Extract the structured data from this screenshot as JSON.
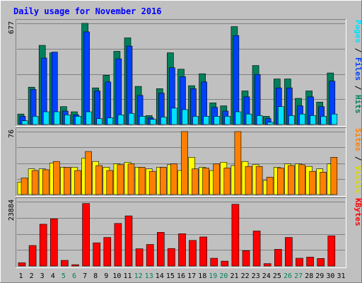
{
  "chart_data": {
    "type": "bar",
    "title": "Daily usage for November 2016",
    "categories": [
      "1",
      "2",
      "3",
      "4",
      "5",
      "6",
      "7",
      "8",
      "9",
      "10",
      "11",
      "12",
      "13",
      "14",
      "15",
      "16",
      "17",
      "18",
      "19",
      "20",
      "21",
      "22",
      "23",
      "24",
      "25",
      "26",
      "27",
      "28",
      "29",
      "30",
      "31"
    ],
    "weekend_days": [
      "5",
      "6",
      "12",
      "13",
      "19",
      "20",
      "26",
      "27"
    ],
    "grid": true,
    "panels": [
      {
        "id": "hits-files-pages",
        "ymax_label": "677",
        "ylim": [
          0,
          677
        ],
        "legend_label": "Pages / Files / Hits",
        "series": [
          {
            "name": "Hits",
            "values": [
              70,
              250,
              530,
              480,
              120,
              85,
              677,
              245,
              330,
              490,
              580,
              255,
              60,
              240,
              480,
              370,
              260,
              340,
              145,
              125,
              655,
              225,
              395,
              55,
              305,
              305,
              175,
              225,
              150,
              345,
              0
            ]
          },
          {
            "name": "Files",
            "values": [
              55,
              235,
              445,
              485,
              90,
              65,
              620,
              225,
              285,
              440,
              525,
              195,
              45,
              210,
              380,
              320,
              240,
              285,
              115,
              90,
              595,
              185,
              335,
              40,
              245,
              245,
              125,
              185,
              120,
              290,
              0
            ]
          },
          {
            "name": "Pages",
            "values": [
              25,
              55,
              85,
              85,
              65,
              55,
              85,
              40,
              45,
              65,
              75,
              55,
              35,
              50,
              110,
              100,
              55,
              55,
              55,
              55,
              85,
              70,
              60,
              15,
              120,
              60,
              70,
              60,
              55,
              70,
              0
            ]
          }
        ],
        "colors": {
          "Hits": "#00805c",
          "Files": "#0040ff",
          "Pages": "#00e0ff"
        }
      },
      {
        "id": "visits-sites",
        "ymax_label": "76",
        "ylim": [
          0,
          76
        ],
        "legend_label": "Sites / Visits",
        "series": [
          {
            "name": "Visits",
            "values": [
              15,
              31,
              31,
              38,
              33,
              33,
              44,
              40,
              33,
              37,
              39,
              33,
              31,
              33,
              36,
              29,
              45,
              33,
              29,
              39,
              35,
              40,
              36,
              17,
              33,
              37,
              37,
              34,
              31,
              37,
              0
            ]
          },
          {
            "name": "Sites",
            "values": [
              20,
              29,
              30,
              40,
              33,
              29,
              52,
              35,
              29,
              36,
              37,
              33,
              28,
              33,
              37,
              76,
              31,
              32,
              37,
              32,
              76,
              34,
              34,
              21,
              32,
              35,
              36,
              28,
              27,
              45,
              0
            ]
          }
        ],
        "colors": {
          "Visits": "#ffff00",
          "Sites": "#ff8000"
        }
      },
      {
        "id": "kbytes",
        "ymax_label": "23884",
        "ylim": [
          0,
          23884
        ],
        "legend_label": "KBytes",
        "series": [
          {
            "name": "KBytes",
            "values": [
              1200,
              7600,
              15500,
              17500,
              2100,
              500,
              23200,
              8600,
              10600,
              15800,
              18600,
              6400,
              8000,
              12500,
              6500,
              12000,
              9500,
              10800,
              2900,
              1800,
              22900,
              5700,
              13000,
              900,
              6200,
              10600,
              2900,
              3300,
              2800,
              11200,
              0
            ]
          }
        ],
        "colors": {
          "KBytes": "#ff0000"
        }
      }
    ]
  }
}
